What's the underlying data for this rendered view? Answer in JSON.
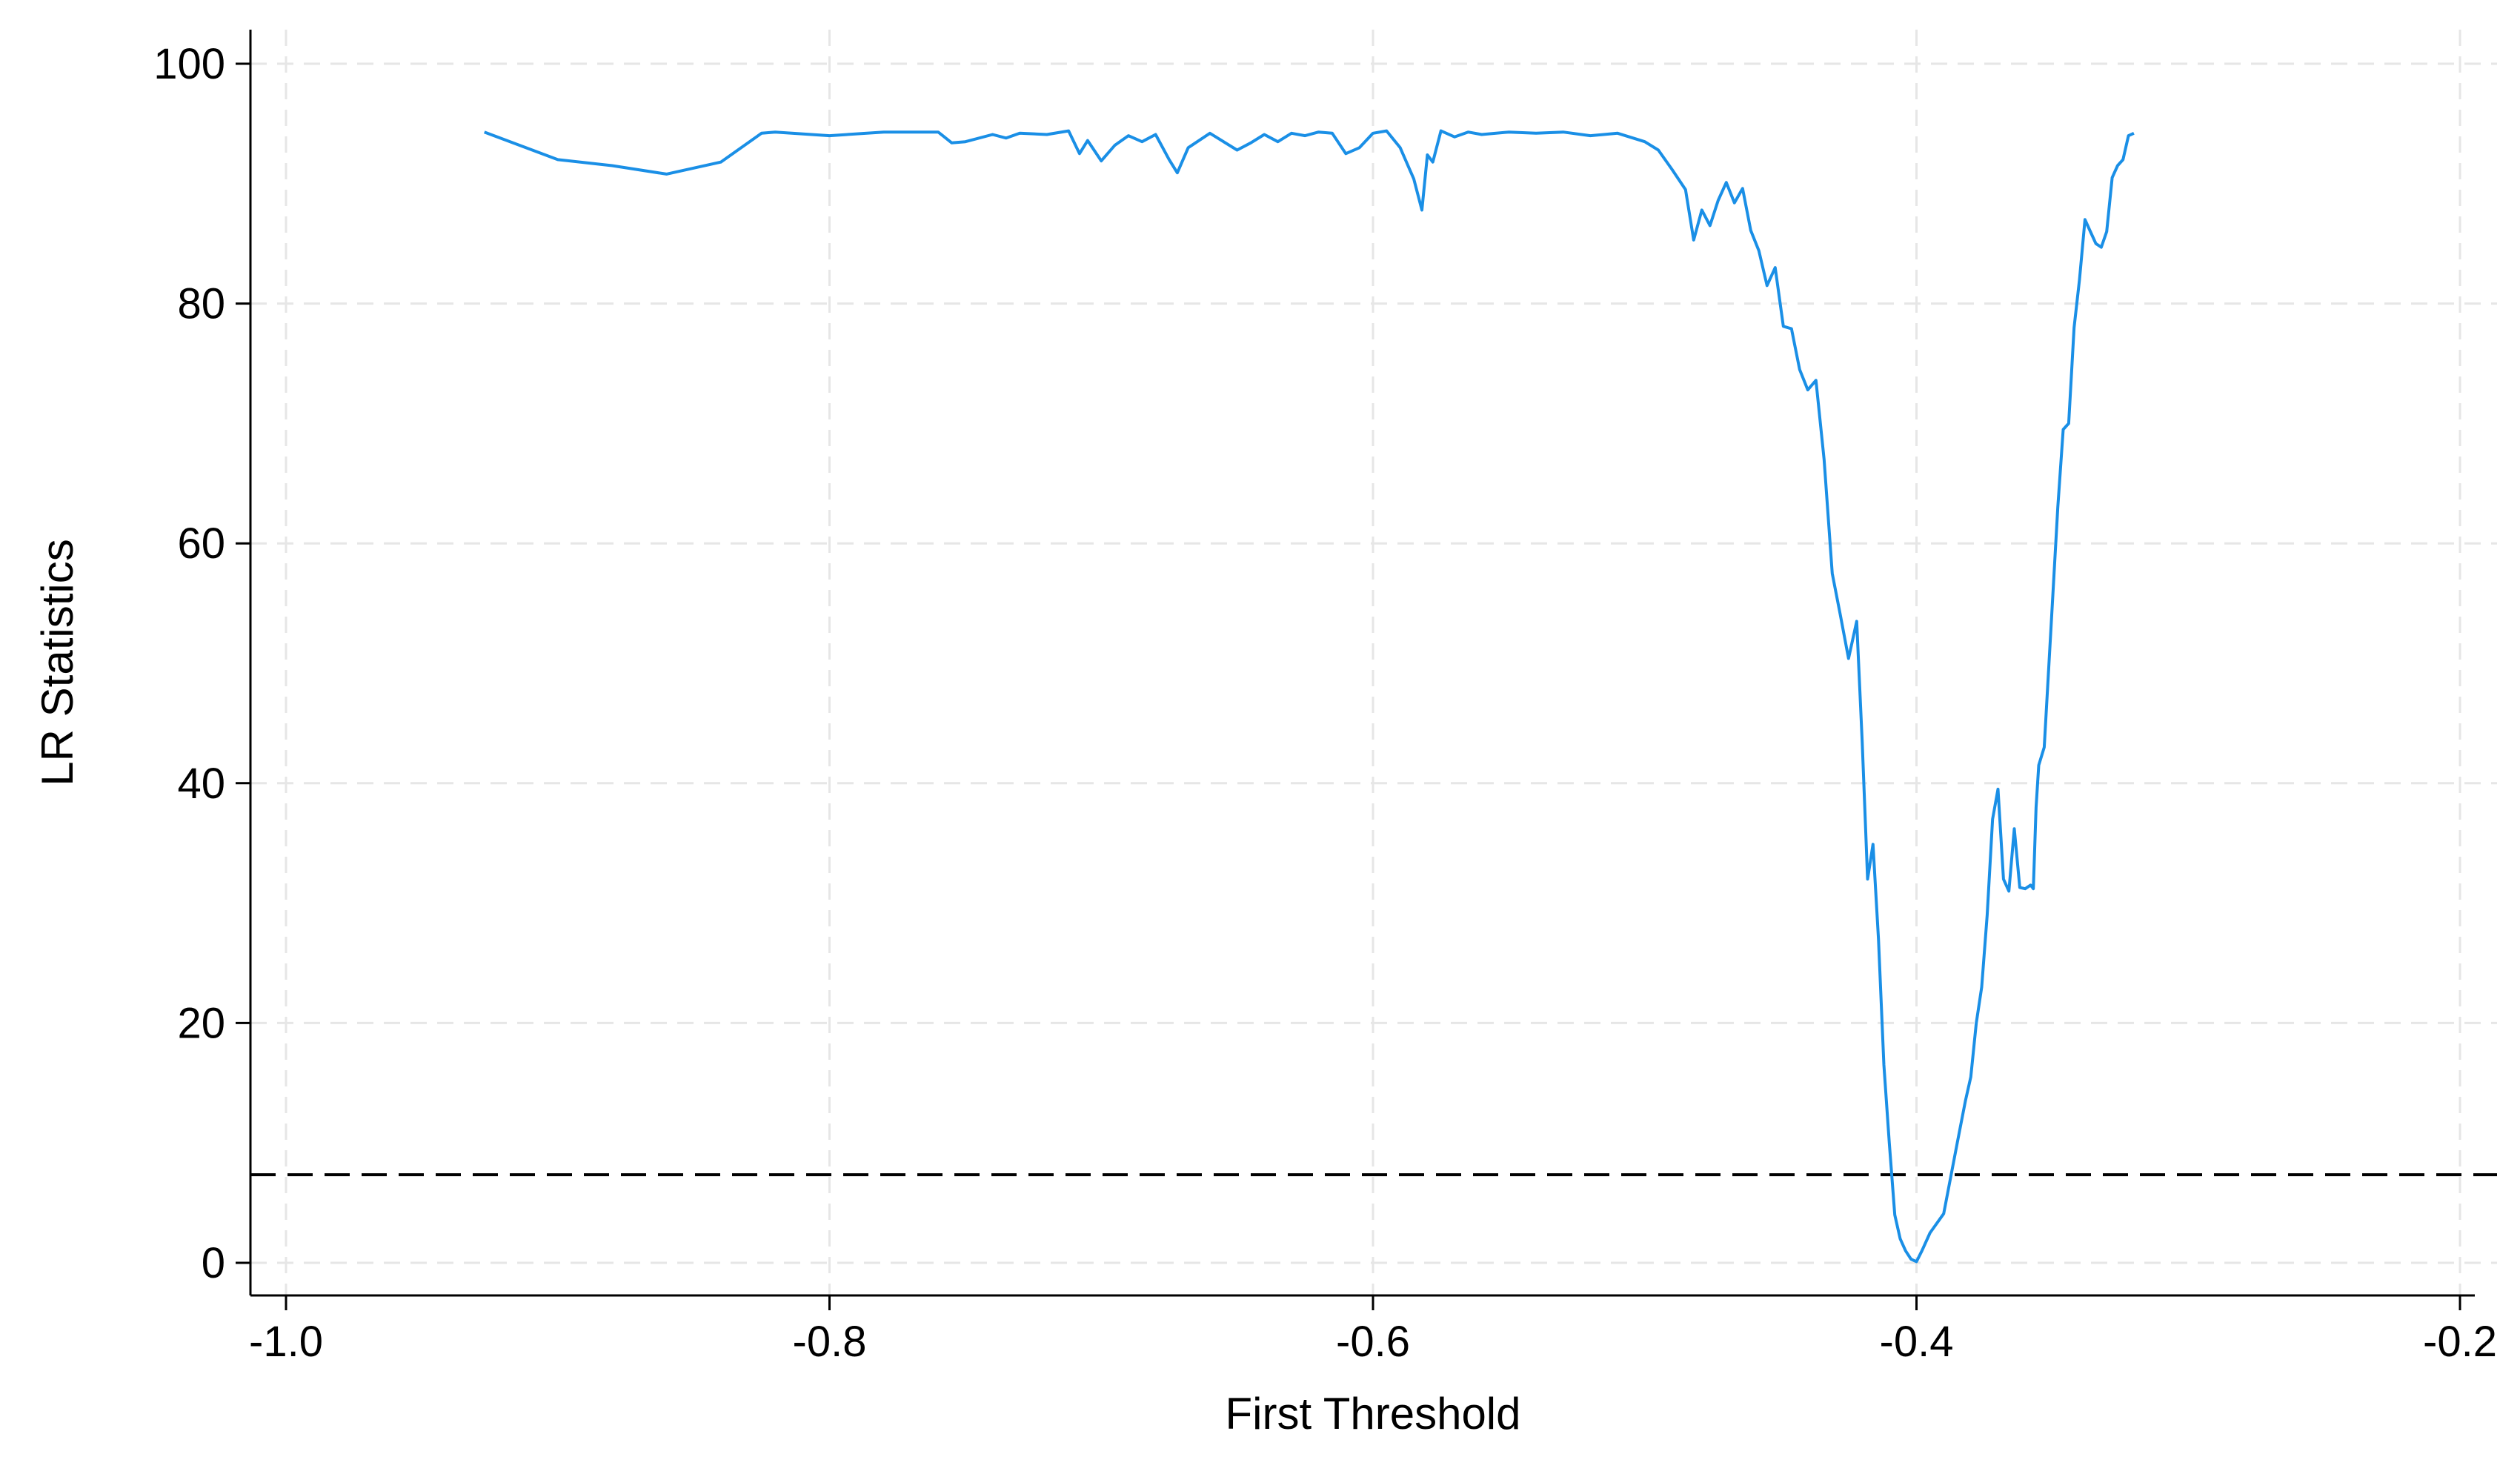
{
  "chart_data": {
    "type": "line",
    "title": "",
    "xlabel": "First Threshold",
    "ylabel": "LR Statistics",
    "xlim": [
      -1.0,
      -0.2
    ],
    "ylim": [
      0,
      100
    ],
    "xticks": [
      -1.0,
      -0.8,
      -0.6,
      -0.4,
      -0.2
    ],
    "xtick_labels": [
      "-1.0",
      "-0.8",
      "-0.6",
      "-0.4",
      "-0.2"
    ],
    "yticks": [
      0,
      20,
      40,
      60,
      80,
      100
    ],
    "ytick_labels": [
      "0",
      "20",
      "40",
      "60",
      "80",
      "100"
    ],
    "grid": true,
    "legend": "none",
    "line_color": "#1a8fe6",
    "critical_value": 7.35,
    "critical_line_style": "dashed black",
    "series": [
      {
        "x": [
          -0.927,
          -0.9,
          -0.88,
          -0.86,
          -0.84,
          -0.825,
          -0.82,
          -0.8,
          -0.78,
          -0.76,
          -0.755,
          -0.75,
          -0.74,
          -0.735,
          -0.73,
          -0.72,
          -0.712,
          -0.708,
          -0.705,
          -0.7,
          -0.695,
          -0.69,
          -0.685,
          -0.68,
          -0.675,
          -0.672,
          -0.668,
          -0.66,
          -0.655,
          -0.65,
          -0.645,
          -0.64,
          -0.635,
          -0.63,
          -0.625,
          -0.62,
          -0.615,
          -0.61,
          -0.605,
          -0.6,
          -0.595,
          -0.59,
          -0.585,
          -0.582,
          -0.58,
          -0.578,
          -0.575,
          -0.57,
          -0.565,
          -0.56,
          -0.55,
          -0.54,
          -0.53,
          -0.52,
          -0.51,
          -0.5,
          -0.495,
          -0.49,
          -0.485,
          -0.482,
          -0.479,
          -0.476,
          -0.473,
          -0.47,
          -0.467,
          -0.464,
          -0.461,
          -0.458,
          -0.455,
          -0.452,
          -0.449,
          -0.446,
          -0.443,
          -0.44,
          -0.437,
          -0.434,
          -0.431,
          -0.428,
          -0.425,
          -0.422,
          -0.42,
          -0.418,
          -0.416,
          -0.414,
          -0.412,
          -0.41,
          -0.408,
          -0.406,
          -0.404,
          -0.402,
          -0.4,
          -0.398,
          -0.395,
          -0.39,
          -0.385,
          -0.382,
          -0.38,
          -0.378,
          -0.376,
          -0.374,
          -0.372,
          -0.37,
          -0.368,
          -0.366,
          -0.364,
          -0.362,
          -0.36,
          -0.358,
          -0.357,
          -0.356,
          -0.355,
          -0.353,
          -0.35,
          -0.348,
          -0.346,
          -0.344,
          -0.342,
          -0.34,
          -0.338,
          -0.336,
          -0.334,
          -0.332,
          -0.33,
          -0.328,
          -0.326,
          -0.324,
          -0.322,
          -0.32
        ],
        "y": [
          94.3,
          92.0,
          91.5,
          90.8,
          91.8,
          94.2,
          94.3,
          94.0,
          94.3,
          94.3,
          93.4,
          93.5,
          94.1,
          93.8,
          94.2,
          94.1,
          94.4,
          92.5,
          93.6,
          91.9,
          93.2,
          94.0,
          93.5,
          94.1,
          92.0,
          90.9,
          93.0,
          94.2,
          93.5,
          92.8,
          93.4,
          94.1,
          93.5,
          94.2,
          94.0,
          94.3,
          94.2,
          92.5,
          93.0,
          94.2,
          94.4,
          93.0,
          90.4,
          87.8,
          92.4,
          91.8,
          94.4,
          93.9,
          94.3,
          94.1,
          94.3,
          94.2,
          94.3,
          94.0,
          94.2,
          93.5,
          92.8,
          91.2,
          89.5,
          85.3,
          87.8,
          86.5,
          88.6,
          90.1,
          88.4,
          89.6,
          86.1,
          84.4,
          81.5,
          83.0,
          78.1,
          77.9,
          74.5,
          72.8,
          73.6,
          67.0,
          57.5,
          54.0,
          50.4,
          53.5,
          43.5,
          32.0,
          34.9,
          27.0,
          16.5,
          10.0,
          4.0,
          2.0,
          1.0,
          0.3,
          0.1,
          1.0,
          2.5,
          4.1,
          10.0,
          13.5,
          15.5,
          20.0,
          23.0,
          29.0,
          37.0,
          39.5,
          32.0,
          31.0,
          36.2,
          31.3,
          31.2,
          31.5,
          31.2,
          38.0,
          41.5,
          43.0,
          55.0,
          63.0,
          69.5,
          70.0,
          78.0,
          82.0,
          87.0,
          86.0,
          85.0,
          84.7,
          86.0,
          90.5,
          91.5,
          92.0,
          94.0,
          94.2
        ]
      }
    ]
  }
}
